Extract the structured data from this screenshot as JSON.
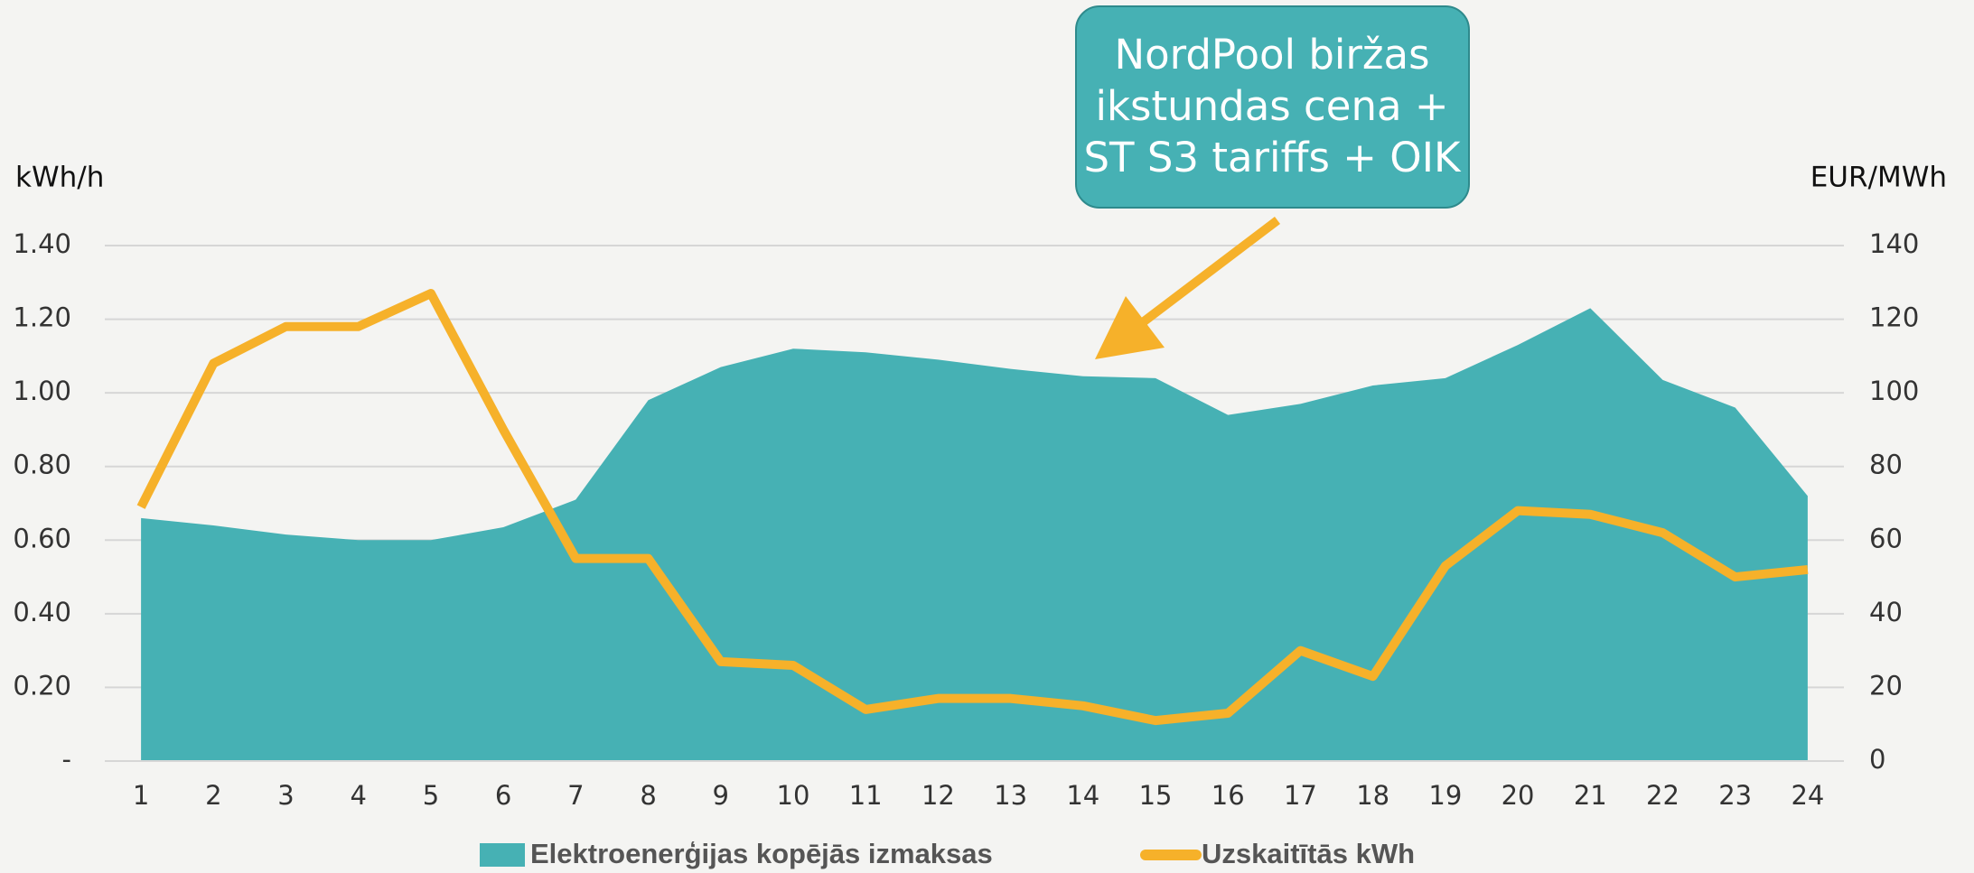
{
  "chart_data": {
    "type": "area_line",
    "y_label": "kWh/h",
    "y2_label": "EUR/MWh",
    "annotation": [
      "NordPool biržas",
      "ikstundas cena +",
      "ST S3 tariffs + OIK"
    ],
    "categories": [
      "1",
      "2",
      "3",
      "4",
      "5",
      "6",
      "7",
      "8",
      "9",
      "10",
      "11",
      "12",
      "13",
      "14",
      "15",
      "16",
      "17",
      "18",
      "19",
      "20",
      "21",
      "22",
      "23",
      "24"
    ],
    "series": [
      {
        "name": "Elektroenerģijas kopējās izmaksas",
        "type": "area",
        "axis": "y2",
        "color": "#46b1b4",
        "values": [
          66,
          64,
          61.5,
          60,
          60,
          63.5,
          71,
          98,
          107,
          112,
          111,
          109,
          106.5,
          104.5,
          104,
          94,
          97,
          102,
          104,
          113,
          123,
          103.5,
          96,
          72
        ]
      },
      {
        "name": "Uzskaitītās kWh",
        "type": "line",
        "axis": "y",
        "color": "#f6b12a",
        "values": [
          0.69,
          1.08,
          1.18,
          1.18,
          1.27,
          0.9,
          0.55,
          0.55,
          0.27,
          0.26,
          0.14,
          0.17,
          0.17,
          0.15,
          0.11,
          0.13,
          0.3,
          0.23,
          0.53,
          0.68,
          0.67,
          0.62,
          0.5,
          0.52
        ]
      }
    ],
    "ylim": [
      0,
      1.4
    ],
    "yticks": [
      {
        "value": 0,
        "label": "-"
      },
      {
        "value": 0.2,
        "label": "0.20"
      },
      {
        "value": 0.4,
        "label": "0.40"
      },
      {
        "value": 0.6,
        "label": "0.60"
      },
      {
        "value": 0.8,
        "label": "0.80"
      },
      {
        "value": 1.0,
        "label": "1.00"
      },
      {
        "value": 1.2,
        "label": "1.20"
      },
      {
        "value": 1.4,
        "label": "1.40"
      }
    ],
    "y2lim": [
      0,
      140
    ],
    "y2ticks": [
      0,
      20,
      40,
      60,
      80,
      100,
      120,
      140
    ],
    "grid": true
  }
}
